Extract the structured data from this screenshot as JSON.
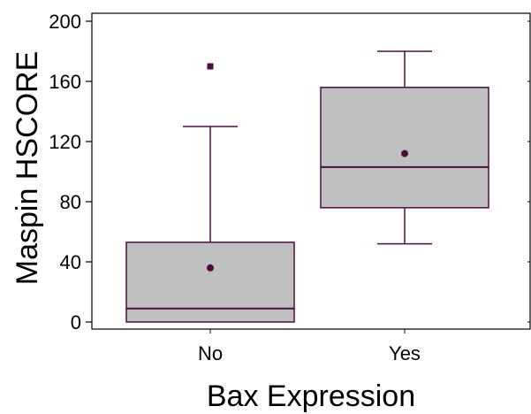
{
  "chart_data": {
    "type": "box",
    "xlabel": "Bax Expression",
    "ylabel": "Maspin HSCORE",
    "ylim": [
      0,
      204
    ],
    "yticks": [
      0,
      40,
      80,
      120,
      160,
      200
    ],
    "categories": [
      "No",
      "Yes"
    ],
    "boxes": [
      {
        "category": "No",
        "whisker_low": 0,
        "q1": 0,
        "median": 9,
        "q3": 53,
        "whisker_high": 130,
        "mean": 36,
        "outliers": [
          170
        ]
      },
      {
        "category": "Yes",
        "whisker_low": 52,
        "q1": 76,
        "median": 103,
        "q3": 156,
        "whisker_high": 180,
        "mean": 112,
        "outliers": []
      }
    ],
    "grid": false,
    "colors": {
      "box_fill": "#c0c0c0",
      "box_stroke": "#4a0f3e",
      "mean_marker": "#4a0f3e",
      "axis": "#000000"
    }
  }
}
